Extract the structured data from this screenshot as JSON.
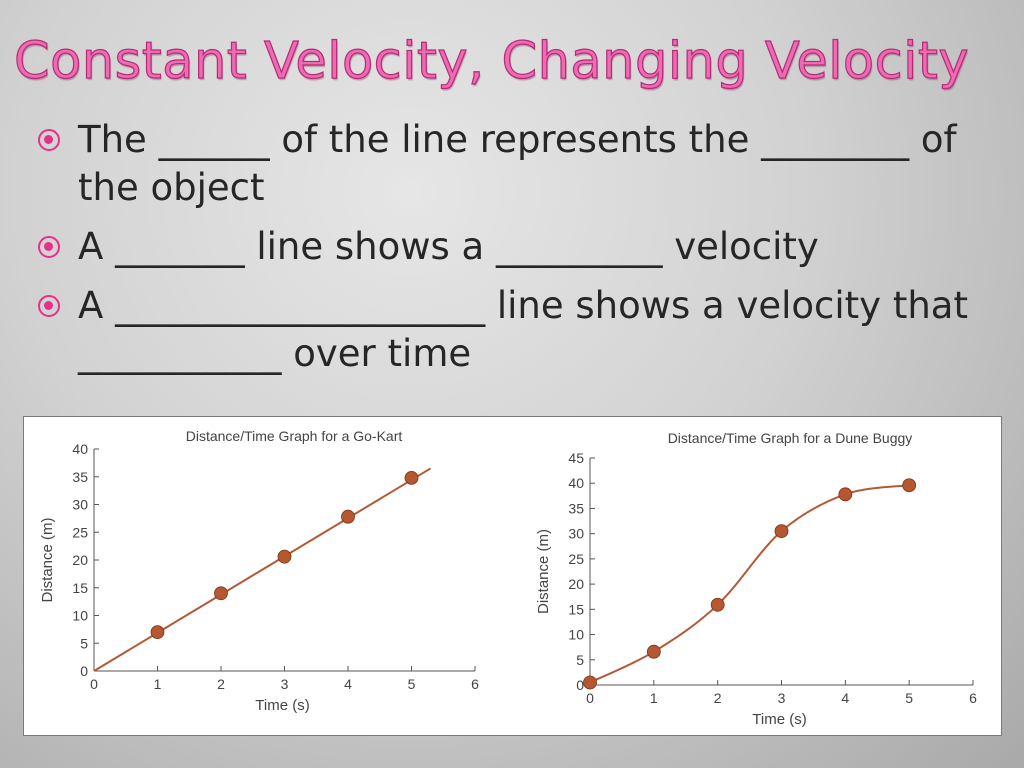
{
  "slide": {
    "title": "Constant Velocity, Changing Velocity",
    "bullets": [
      "The ______ of the line represents the ________ of the object",
      "A _______ line shows a _________ velocity",
      "A ____________________ line shows a velocity that ___________ over time"
    ]
  },
  "colors": {
    "title": "#ec6bb1",
    "bullet": "#e7308a",
    "series_line": "#b25a36",
    "marker": "#b55731"
  },
  "chart_data": [
    {
      "type": "line",
      "title": "Distance/Time Graph for a Go-Kart",
      "xlabel": "Time (s)",
      "ylabel": "Distance (m)",
      "xlim": [
        0,
        6
      ],
      "ylim": [
        0,
        40
      ],
      "xticks": [
        0,
        1,
        2,
        3,
        4,
        5,
        6
      ],
      "yticks": [
        0,
        5,
        10,
        15,
        20,
        25,
        30,
        35,
        40
      ],
      "grid": false,
      "smooth": false,
      "line_x": [
        0,
        5.3
      ],
      "line_y": [
        0,
        36.5
      ],
      "points": [
        {
          "x": 1,
          "y": 7
        },
        {
          "x": 2,
          "y": 14
        },
        {
          "x": 3,
          "y": 20.6
        },
        {
          "x": 4,
          "y": 27.8
        },
        {
          "x": 5,
          "y": 34.8
        }
      ]
    },
    {
      "type": "line",
      "title": "Distance/Time Graph for a Dune Buggy",
      "xlabel": "Time (s)",
      "ylabel": "Distance (m)",
      "xlim": [
        0,
        6
      ],
      "ylim": [
        0,
        45
      ],
      "xticks": [
        0,
        1,
        2,
        3,
        4,
        5,
        6
      ],
      "yticks": [
        0,
        5,
        10,
        15,
        20,
        25,
        30,
        35,
        40,
        45
      ],
      "grid": false,
      "smooth": true,
      "points": [
        {
          "x": 0,
          "y": 0.5
        },
        {
          "x": 1,
          "y": 6.6
        },
        {
          "x": 2,
          "y": 15.9
        },
        {
          "x": 3,
          "y": 30.5
        },
        {
          "x": 4,
          "y": 37.8
        },
        {
          "x": 5,
          "y": 39.6
        }
      ]
    }
  ]
}
